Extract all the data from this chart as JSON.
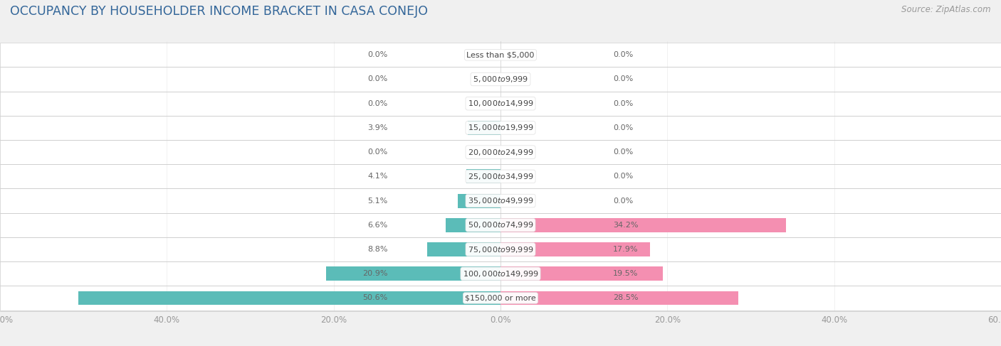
{
  "title": "OCCUPANCY BY HOUSEHOLDER INCOME BRACKET IN CASA CONEJO",
  "source": "Source: ZipAtlas.com",
  "categories": [
    "Less than $5,000",
    "$5,000 to $9,999",
    "$10,000 to $14,999",
    "$15,000 to $19,999",
    "$20,000 to $24,999",
    "$25,000 to $34,999",
    "$35,000 to $49,999",
    "$50,000 to $74,999",
    "$75,000 to $99,999",
    "$100,000 to $149,999",
    "$150,000 or more"
  ],
  "owner_values": [
    0.0,
    0.0,
    0.0,
    3.9,
    0.0,
    4.1,
    5.1,
    6.6,
    8.8,
    20.9,
    50.6
  ],
  "renter_values": [
    0.0,
    0.0,
    0.0,
    0.0,
    0.0,
    0.0,
    0.0,
    34.2,
    17.9,
    19.5,
    28.5
  ],
  "owner_color": "#5bbcb8",
  "renter_color": "#f48fb1",
  "background_color": "#f0f0f0",
  "bar_background_color": "#ffffff",
  "axis_limit": 60.0,
  "title_fontsize": 12.5,
  "source_fontsize": 8.5,
  "label_fontsize": 8.0,
  "category_fontsize": 8.0,
  "tick_fontsize": 8.5,
  "legend_fontsize": 9,
  "title_color": "#336699",
  "source_color": "#999999",
  "tick_color": "#999999",
  "label_color": "#666666",
  "category_label_color": "#444444"
}
